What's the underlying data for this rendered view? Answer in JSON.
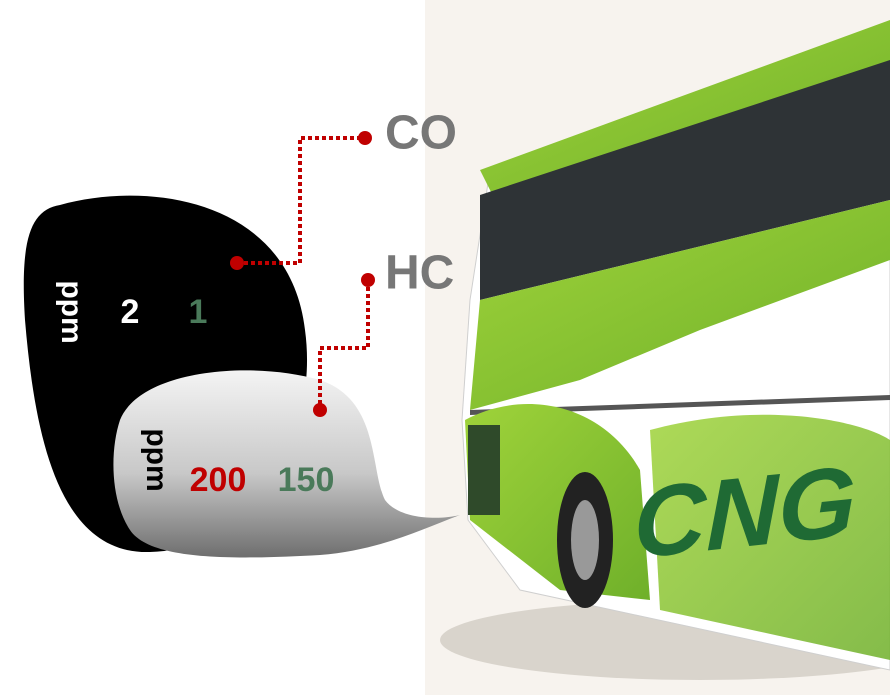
{
  "callouts": [
    {
      "label": "CO"
    },
    {
      "label": "HC"
    }
  ],
  "co_panel": {
    "unit": "ppm",
    "values": [
      2,
      1
    ]
  },
  "hc_panel": {
    "unit": "ppm",
    "values": [
      200,
      150
    ]
  },
  "bus": {
    "label": "CNG"
  }
}
